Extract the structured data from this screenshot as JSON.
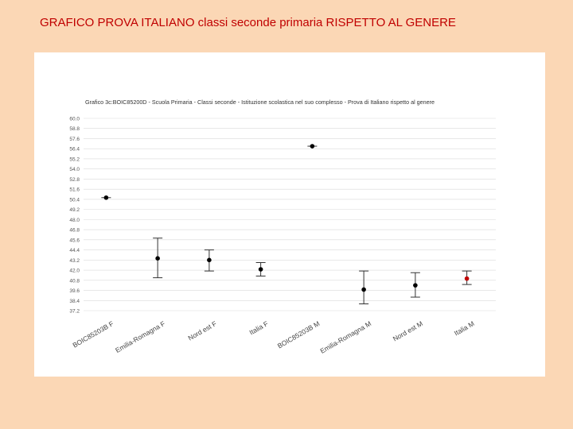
{
  "slide": {
    "title": "GRAFICO PROVA ITALIANO  classi seconde primaria RISPETTO AL GENERE"
  },
  "colors": {
    "background": "#fbd7b5",
    "title": "#c00000",
    "marker": "#000000",
    "italia_marker": "#c00000",
    "grid": "#d9d9d9"
  },
  "chart_data": {
    "type": "scatter",
    "title": "Grafico 3c:BOIC85200D - Scuola Primaria - Classi seconde - Istituzione scolastica nel suo complesso - Prova di Italiano rispetto al genere",
    "ylim": [
      37.2,
      60.0
    ],
    "yticks": [
      "60.0",
      "58.8",
      "57.6",
      "56.4",
      "55.2",
      "54.0",
      "52.8",
      "51.6",
      "50.4",
      "49.2",
      "48.0",
      "46.8",
      "45.6",
      "44.4",
      "43.2",
      "42.0",
      "40.8",
      "39.6",
      "38.4",
      "37.2"
    ],
    "grid": true,
    "categories": [
      "BOIC85203B F",
      "Emilia-Romagna F",
      "Nord est F",
      "Italia F",
      "BOIC85203B M",
      "Emilia-Romagna M",
      "Nord est M",
      "Italia M"
    ],
    "points": [
      {
        "category": "BOIC85203B F",
        "value": 50.6,
        "low": 50.6,
        "high": 50.6,
        "highlight": false
      },
      {
        "category": "Emilia-Romagna F",
        "value": 43.4,
        "low": 41.1,
        "high": 45.8,
        "highlight": false
      },
      {
        "category": "Nord est F",
        "value": 43.2,
        "low": 41.9,
        "high": 44.4,
        "highlight": false
      },
      {
        "category": "Italia F",
        "value": 42.1,
        "low": 41.3,
        "high": 42.9,
        "highlight": false
      },
      {
        "category": "BOIC85203B M",
        "value": 56.7,
        "low": 56.7,
        "high": 56.7,
        "highlight": false
      },
      {
        "category": "Emilia-Romagna M",
        "value": 39.7,
        "low": 38.0,
        "high": 41.9,
        "highlight": false
      },
      {
        "category": "Nord est M",
        "value": 40.2,
        "low": 38.8,
        "high": 41.7,
        "highlight": false
      },
      {
        "category": "Italia M",
        "value": 41.0,
        "low": 40.3,
        "high": 41.9,
        "highlight": true
      }
    ]
  }
}
